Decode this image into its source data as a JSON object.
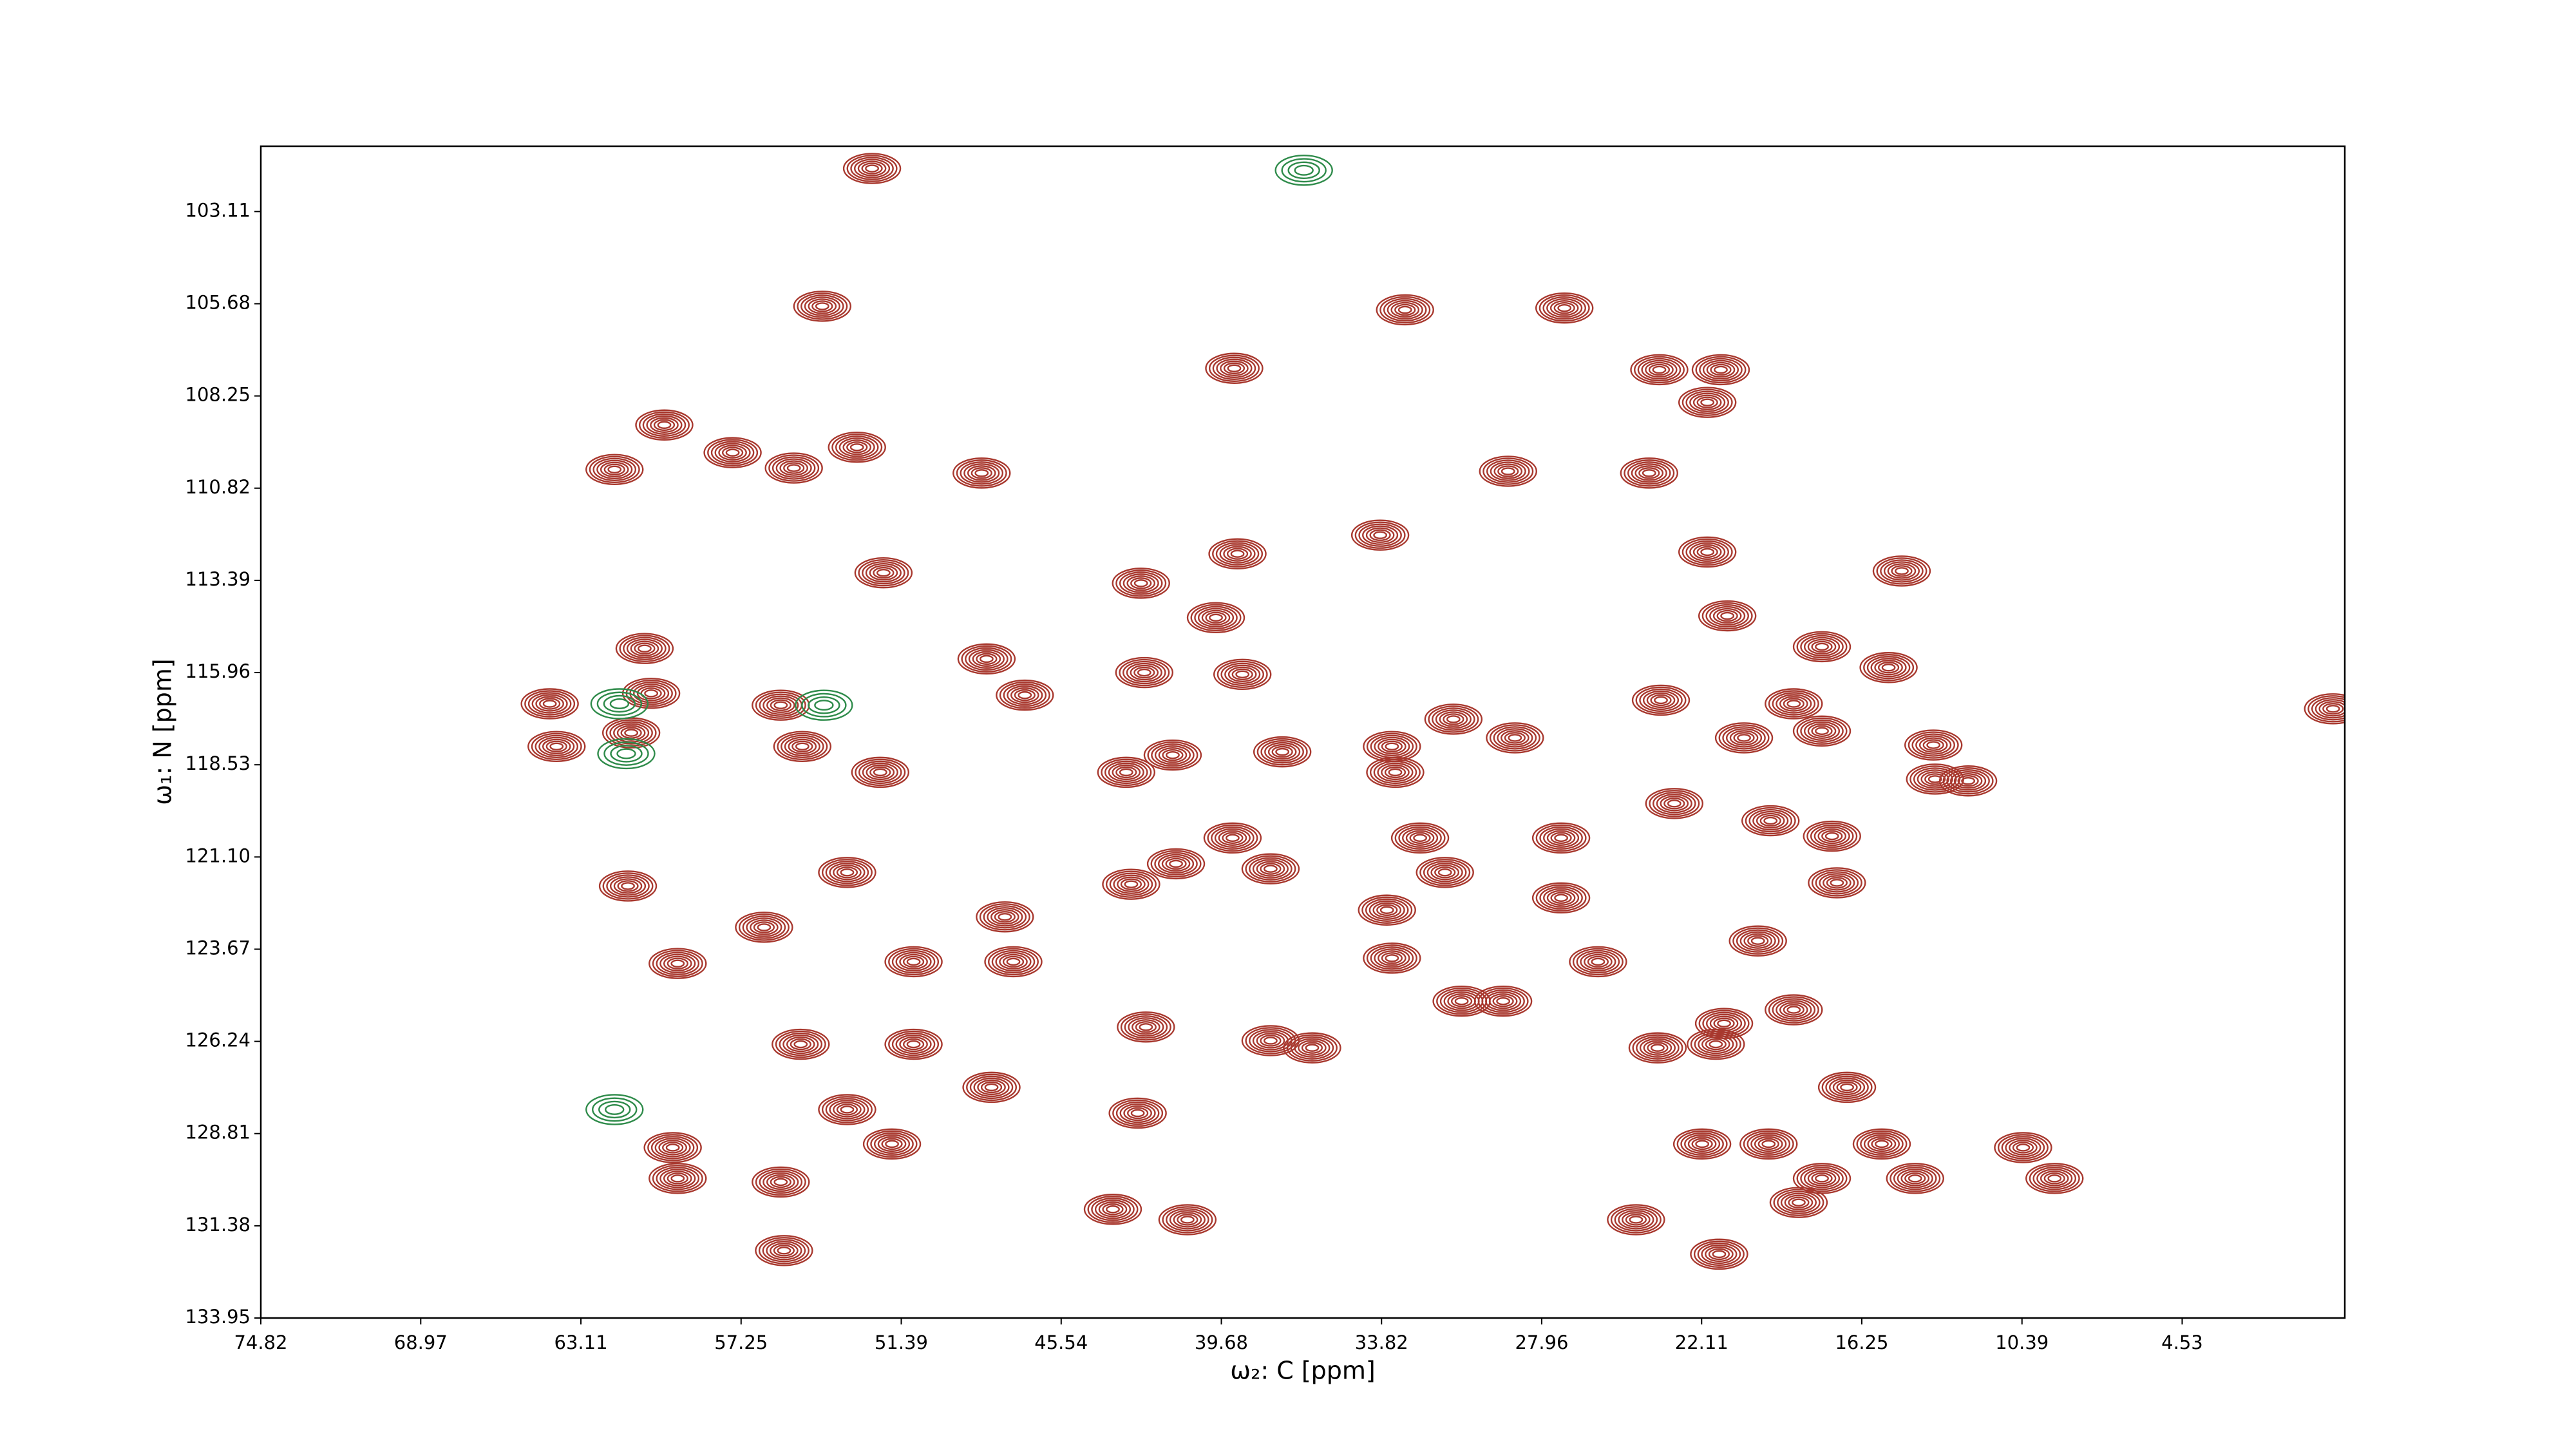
{
  "chart_data": {
    "type": "contour",
    "xlabel": "ω₂: C [ppm]",
    "ylabel": "ω₁: N [ppm]",
    "xlim": [
      74.82,
      -1.42
    ],
    "ylim": [
      133.95,
      101.29
    ],
    "xticks": [
      74.82,
      68.97,
      63.11,
      57.25,
      51.39,
      45.54,
      39.68,
      33.82,
      27.96,
      22.11,
      16.25,
      10.39,
      4.53
    ],
    "yticks": [
      103.11,
      105.68,
      108.25,
      110.82,
      113.39,
      115.96,
      118.53,
      {
        "value": 121.1,
        "label": "121.10"
      },
      123.67,
      126.24,
      128.81,
      131.38,
      133.95
    ],
    "positive_color": "#a8382e",
    "negative_color": "#2e8b4a",
    "peaks": {
      "x": [
        52.46,
        32.96,
        27.13,
        21.41,
        21.9,
        23.66,
        39.21,
        54.28,
        60.06,
        61.88,
        55.32,
        53.01,
        48.45,
        57.56,
        33.87,
        29.19,
        24.03,
        39.09,
        42.62,
        39.88,
        21.9,
        14.79,
        21.17,
        52.04,
        17.71,
        15.27,
        48.27,
        46.87,
        42.5,
        38.91,
        60.78,
        64.25,
        60.54,
        55.8,
        64.0,
        61.27,
        55.01,
        52.16,
        43.16,
        41.46,
        37.45,
        33.44,
        33.32,
        31.19,
        28.94,
        23.6,
        18.74,
        17.71,
        13.57,
        13.63,
        17.34,
        20.56,
        27.25,
        27.25,
        32.41,
        31.5,
        33.62,
        33.44,
        42.98,
        41.34,
        37.88,
        39.27,
        47.6,
        50.94,
        47.29,
        56.41,
        53.37,
        61.39,
        59.57,
        55.07,
        50.94,
        42.44,
        37.88,
        36.36,
        48.09,
        42.74,
        53.37,
        51.73,
        59.75,
        59.57,
        43.65,
        40.92,
        55.8,
        55.68,
        21.47,
        16.79,
        15.52,
        14.3,
        10.35,
        9.2,
        17.71,
        18.56,
        19.66,
        22.09,
        24.51,
        21.59,
        23.72,
        20.05,
        21.29,
        18.74,
        25.9,
        29.37,
        30.89,
        17.16,
        19.59,
        23.11,
        12.36,
        -0.99
      ],
      "y": [
        101.91,
        105.85,
        105.8,
        107.52,
        108.43,
        107.52,
        107.48,
        105.75,
        109.06,
        110.3,
        110.26,
        109.68,
        110.4,
        109.83,
        112.13,
        110.35,
        110.4,
        112.65,
        113.47,
        114.43,
        112.6,
        113.13,
        114.38,
        113.18,
        115.24,
        115.82,
        115.58,
        116.59,
        115.96,
        116.01,
        115.29,
        116.83,
        116.54,
        116.87,
        118.02,
        117.64,
        118.02,
        118.74,
        118.74,
        118.26,
        118.17,
        118.02,
        118.74,
        117.26,
        117.78,
        116.73,
        116.83,
        117.59,
        118.93,
        117.98,
        120.52,
        117.78,
        120.57,
        122.24,
        120.57,
        121.53,
        122.58,
        123.92,
        121.86,
        121.29,
        121.43,
        120.57,
        122.77,
        124.02,
        124.02,
        123.06,
        121.53,
        121.91,
        124.07,
        126.32,
        126.32,
        125.84,
        126.22,
        126.42,
        127.52,
        128.24,
        128.14,
        129.1,
        129.2,
        130.06,
        130.92,
        131.21,
        130.16,
        132.07,
        132.17,
        127.52,
        129.1,
        130.06,
        129.2,
        130.06,
        130.06,
        130.73,
        129.1,
        129.1,
        131.21,
        126.32,
        126.42,
        123.44,
        125.74,
        125.36,
        124.02,
        125.12,
        125.12,
        121.82,
        120.09,
        119.61,
        118.98,
        116.97
      ]
    },
    "negative_peaks": {
      "x": [
        61.7,
        36.66,
        61.88,
        61.45,
        54.22
      ],
      "y": [
        116.83,
        101.96,
        128.14,
        118.22,
        116.87
      ]
    }
  }
}
